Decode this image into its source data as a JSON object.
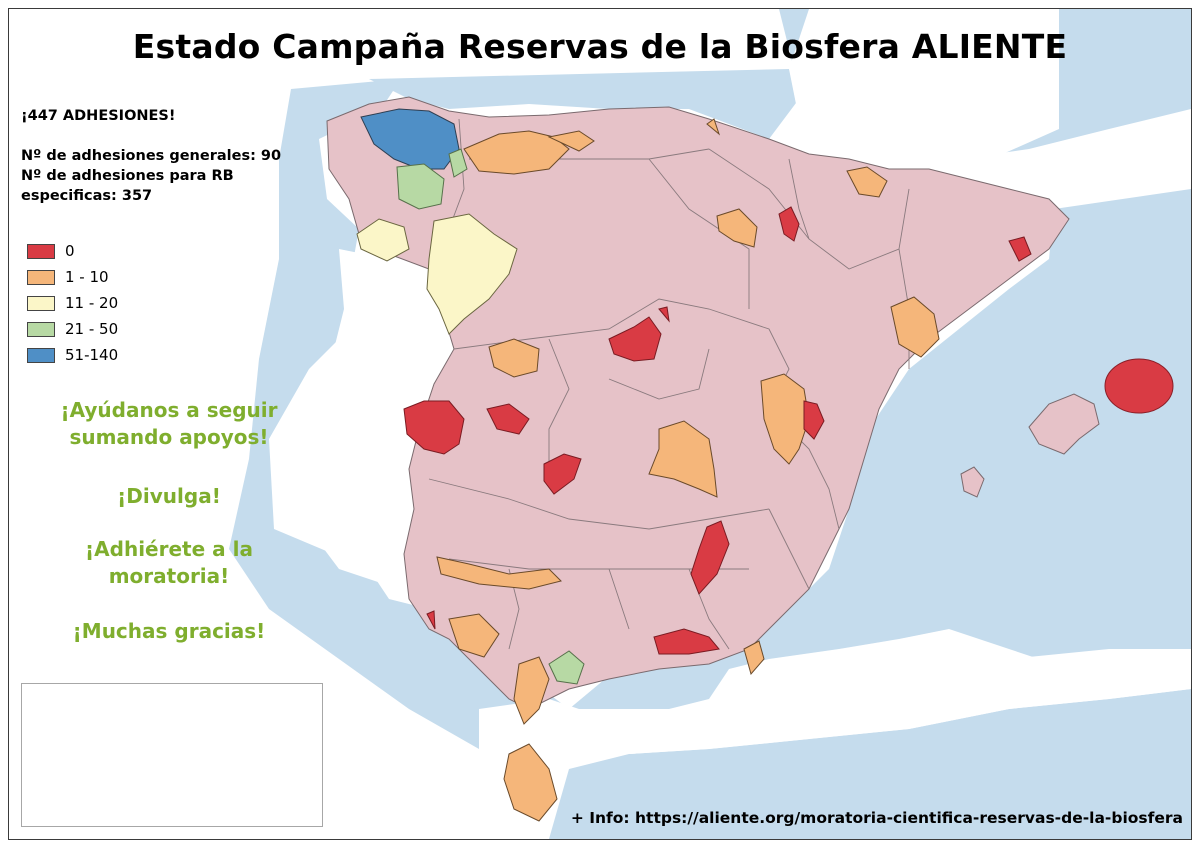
{
  "title": "Estado Campaña Reservas de la Biosfera ALIENTE",
  "stats": {
    "total": "¡447 ADHESIONES!",
    "general": "Nº de adhesiones generales: 90",
    "specific_line1": "Nº de adhesiones para RB",
    "specific_line2": "especificas: 357"
  },
  "legend": [
    {
      "label": "0",
      "color": "#d93b44"
    },
    {
      "label": "1 - 10",
      "color": "#f5b67a"
    },
    {
      "label": "11 - 20",
      "color": "#fbf6c8"
    },
    {
      "label": "21 - 50",
      "color": "#b7d9a4"
    },
    {
      "label": "51-140",
      "color": "#4f8fc6"
    }
  ],
  "cta": {
    "help_line1": "¡Ayúdanos a seguir",
    "help_line2": "sumando apoyos!",
    "share": "¡Divulga!",
    "join_line1": "¡Adhiérete a la",
    "join_line2": "moratoria!",
    "thanks": "¡Muchas gracias!"
  },
  "info": "+ Info: https://aliente.org/moratoria-cientifica-reservas-de-la-biosfera",
  "colors": {
    "sea": "#c5dced",
    "land": "#e6c2c8",
    "foreign_land": "#ffffff",
    "border": "#7a6a6e",
    "accent_green": "#7fae2e"
  }
}
